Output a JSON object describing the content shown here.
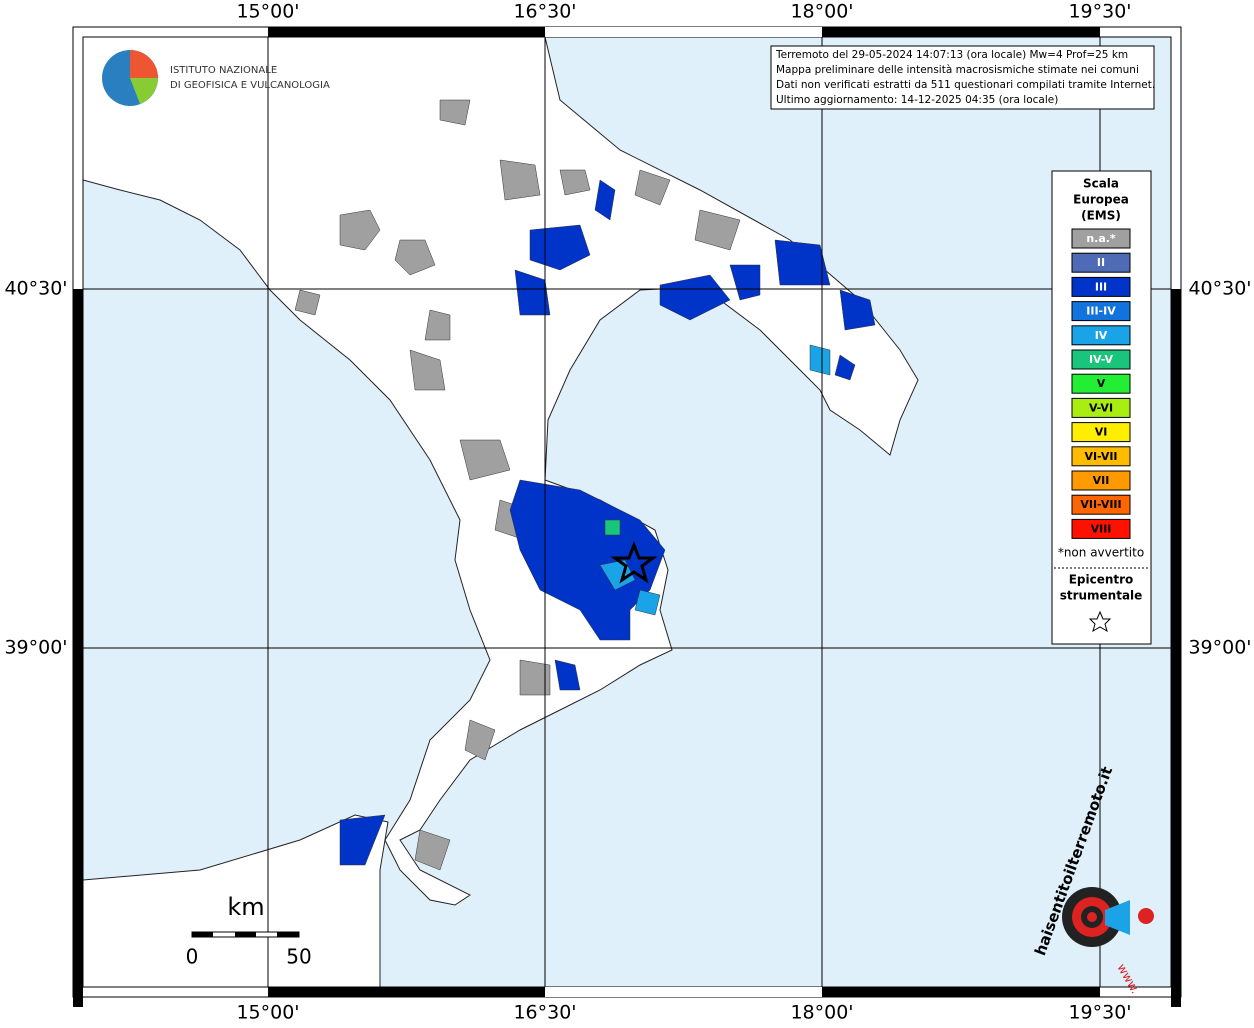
{
  "header": {
    "logo_lines": [
      "ISTITUTO NAZIONALE",
      "DI GEOFISICA E VULCANOLOGIA"
    ]
  },
  "map": {
    "lon_labels": [
      "15°00'",
      "16°30'",
      "18°00'",
      "19°30'"
    ],
    "lat_labels": [
      "40°30'",
      "39°00'"
    ]
  },
  "info_box": {
    "lines": [
      "Terremoto del 29-05-2024 14:07:13 (ora locale) Mw=4 Prof=25 km",
      "Mappa preliminare delle intensità macrosismiche stimate nei comuni",
      "Dati non verificati estratti da 511 questionari compilati tramite Internet.",
      "Ultimo aggiornamento: 14-12-2025 04:35 (ora locale)"
    ]
  },
  "legend": {
    "title": [
      "Scala",
      "Europea",
      "(EMS)"
    ],
    "items": [
      {
        "label": "n.a.*",
        "color": "#a0a0a0"
      },
      {
        "label": "II",
        "color": "#4f6bb5"
      },
      {
        "label": "III",
        "color": "#0033c8"
      },
      {
        "label": "III-IV",
        "color": "#1273dd"
      },
      {
        "label": "IV",
        "color": "#1aa3e6"
      },
      {
        "label": "IV-V",
        "color": "#19c47b"
      },
      {
        "label": "V",
        "color": "#22ee33"
      },
      {
        "label": "V-VI",
        "color": "#aaee11"
      },
      {
        "label": "VI",
        "color": "#ffee00"
      },
      {
        "label": "VI-VII",
        "color": "#ffbb00"
      },
      {
        "label": "VII",
        "color": "#ff9900"
      },
      {
        "label": "VII-VIII",
        "color": "#ff6600"
      },
      {
        "label": "VIII",
        "color": "#ff1100"
      }
    ],
    "note": "*non avvertito",
    "epicenter": [
      "Epicentro",
      "strumentale"
    ]
  },
  "scale_bar": {
    "unit": "km",
    "labels": [
      "0",
      "50"
    ]
  },
  "site_logo": {
    "text": "haisentitoilterremoto.it",
    "prefix": "www."
  }
}
